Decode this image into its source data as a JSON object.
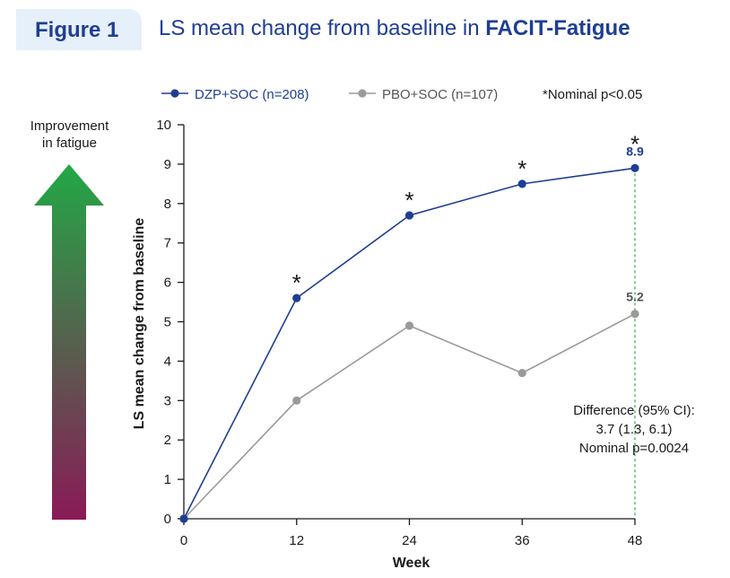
{
  "figure_label": "Figure 1",
  "title_prefix": "LS mean change from baseline in ",
  "title_bold": "FACIT-Fatigue",
  "side_arrow": {
    "line1": "Improvement",
    "line2": "in fatigue"
  },
  "footnote_legend": "*Nominal p<0.05",
  "annotation": {
    "line1": "Difference (95% CI):",
    "line2": "3.7 (1.3, 6.1)",
    "line3": "Nominal p=0.0024"
  },
  "colors": {
    "dzp": "#1f3e93",
    "pbo": "#9a9a9a",
    "reference_line": "#3aa84a",
    "arrow_top": "#22a845",
    "arrow_bottom": "#8a1a57"
  },
  "chart_data": {
    "type": "line",
    "xlabel": "Week",
    "ylabel": "LS mean change from baseline",
    "x": [
      0,
      12,
      24,
      36,
      48
    ],
    "xticks": [
      "0",
      "12",
      "24",
      "36",
      "48"
    ],
    "yticks": [
      "0",
      "1",
      "2",
      "3",
      "4",
      "5",
      "6",
      "7",
      "8",
      "9",
      "10"
    ],
    "xlim": [
      0,
      48
    ],
    "ylim": [
      0,
      10
    ],
    "grid": false,
    "legend_position": "top",
    "series": [
      {
        "name": "DZP+SOC (n=208)",
        "values": [
          0,
          5.6,
          7.7,
          8.5,
          8.9
        ],
        "significant": [
          false,
          true,
          true,
          true,
          true
        ]
      },
      {
        "name": "PBO+SOC (n=107)",
        "values": [
          0,
          3.0,
          4.9,
          3.7,
          5.2
        ]
      }
    ],
    "data_labels": [
      {
        "series": 0,
        "x": 48,
        "text": "8.9"
      },
      {
        "series": 1,
        "x": 48,
        "text": "5.2"
      }
    ],
    "significance_marker": "*",
    "reference_line_x": 48
  }
}
